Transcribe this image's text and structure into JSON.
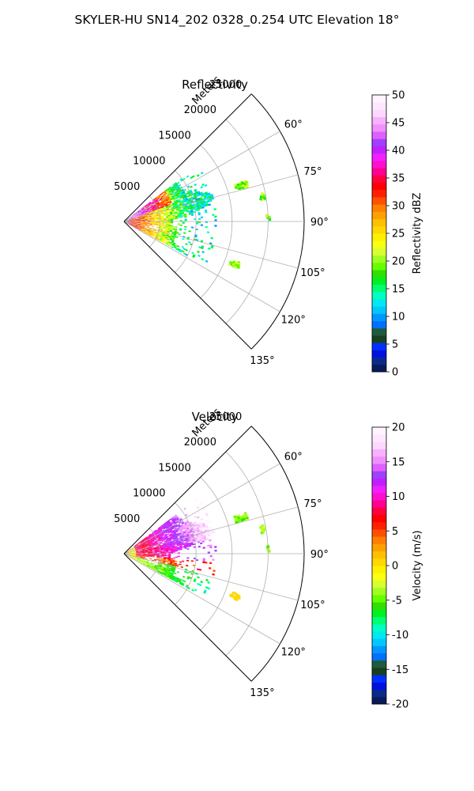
{
  "figure": {
    "suptitle": "SKYLER-HU  SN14_202  0328_0.254 UTC Elevation 18°"
  },
  "palette": {
    "background": "#ffffff",
    "grid": "#b0b0b0",
    "frame": "#000000",
    "reflectivity_colors": [
      "#081a5a",
      "#0a2a8a",
      "#0010e0",
      "#0030ff",
      "#164020",
      "#1f5a3a",
      "#0070ff",
      "#0098ff",
      "#00c8ff",
      "#00e8f0",
      "#00ffc0",
      "#00ff70",
      "#00f020",
      "#30e000",
      "#66ff00",
      "#a0ff20",
      "#d8ff30",
      "#f8ff10",
      "#fff000",
      "#ffd800",
      "#ffc000",
      "#ffa000",
      "#ff8000",
      "#ff5000",
      "#ff2000",
      "#ff0000",
      "#ff0040",
      "#ff0090",
      "#ff10d0",
      "#f020ff",
      "#c020ff",
      "#a040ff",
      "#e060ff",
      "#f090ff",
      "#f8b0ff",
      "#fcd8ff",
      "#ffe8ff",
      "#fff4ff"
    ],
    "velocity_colors": [
      "#081a5a",
      "#0a2a8a",
      "#0010e0",
      "#0030ff",
      "#164020",
      "#1f5a3a",
      "#0070ff",
      "#0098ff",
      "#00c8ff",
      "#00e8f0",
      "#00ffc0",
      "#00ff70",
      "#00f020",
      "#30e000",
      "#66ff00",
      "#a0ff20",
      "#d8ff30",
      "#f8ff10",
      "#fff000",
      "#ffd800",
      "#ffc000",
      "#ffa000",
      "#ff8000",
      "#ff5000",
      "#ff2000",
      "#ff0000",
      "#ff0040",
      "#ff0090",
      "#ff10d0",
      "#f020ff",
      "#c020ff",
      "#a040ff",
      "#e060ff",
      "#f090ff",
      "#f8b0ff",
      "#fcd8ff",
      "#ffe8ff",
      "#fff4ff"
    ]
  },
  "chart_data": [
    {
      "type": "heatmap",
      "projection": "polar-sector",
      "title": "Reflectivity",
      "radial_label": "Meters",
      "theta_range_deg": [
        45,
        135
      ],
      "r_max_m": 25000,
      "r_ticks": [
        5000,
        10000,
        15000,
        20000,
        25000
      ],
      "r_tick_labels": [
        "5000",
        "10000",
        "15000",
        "20000",
        "25000"
      ],
      "theta_ticks_deg": [
        60,
        75,
        90,
        105,
        120,
        135
      ],
      "theta_tick_labels": [
        "60°",
        "75°",
        "90°",
        "105°",
        "120°",
        "135°"
      ],
      "grid": true,
      "colorbar": {
        "label": "Reflectivity dBZ",
        "range": [
          0,
          50
        ],
        "ticks": [
          0,
          5,
          10,
          15,
          20,
          25,
          30,
          35,
          40,
          45,
          50
        ]
      },
      "echo_region_approx": {
        "theta_deg": [
          53,
          118
        ],
        "r_m": [
          0,
          12000
        ]
      }
    },
    {
      "type": "heatmap",
      "projection": "polar-sector",
      "title": "Velocity",
      "radial_label": "Meters",
      "theta_range_deg": [
        45,
        135
      ],
      "r_max_m": 25000,
      "r_ticks": [
        5000,
        10000,
        15000,
        20000,
        25000
      ],
      "r_tick_labels": [
        "5000",
        "10000",
        "15000",
        "20000",
        "25000"
      ],
      "theta_ticks_deg": [
        60,
        75,
        90,
        105,
        120,
        135
      ],
      "theta_tick_labels": [
        "60°",
        "75°",
        "90°",
        "105°",
        "120°",
        "135°"
      ],
      "grid": true,
      "colorbar": {
        "label": "Velocity (m/s)",
        "range": [
          -20,
          20
        ],
        "ticks": [
          -20,
          -15,
          -10,
          -5,
          0,
          5,
          10,
          15,
          20
        ]
      },
      "echo_region_approx": {
        "theta_deg": [
          53,
          118
        ],
        "r_m": [
          0,
          12000
        ]
      }
    }
  ]
}
